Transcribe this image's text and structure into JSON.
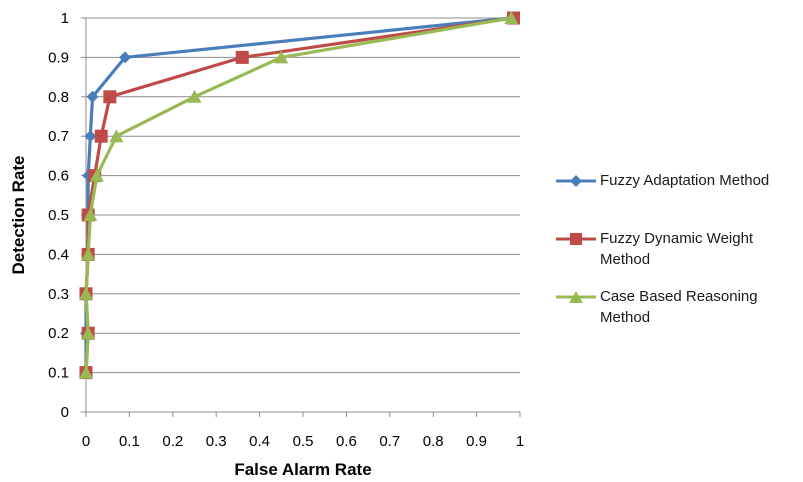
{
  "chart_data": {
    "type": "line",
    "xlabel": "False Alarm Rate",
    "ylabel": "Detection Rate",
    "xlim": [
      0,
      1
    ],
    "ylim": [
      0,
      1
    ],
    "xticks": [
      "0",
      "0.1",
      "0.2",
      "0.3",
      "0.4",
      "0.5",
      "0.6",
      "0.7",
      "0.8",
      "0.9",
      "1"
    ],
    "yticks": [
      "0",
      "0.1",
      "0.2",
      "0.3",
      "0.4",
      "0.5",
      "0.6",
      "0.7",
      "0.8",
      "0.9",
      "1"
    ],
    "grid": "horizontal",
    "legend_position": "right",
    "series": [
      {
        "name": "Fuzzy Adaptation Method",
        "color": "#4a7ebb",
        "marker": "diamond",
        "points": [
          [
            0.0,
            0.1
          ],
          [
            0.0,
            0.2
          ],
          [
            0.0,
            0.3
          ],
          [
            0.005,
            0.4
          ],
          [
            0.005,
            0.5
          ],
          [
            0.005,
            0.6
          ],
          [
            0.01,
            0.7
          ],
          [
            0.015,
            0.8
          ],
          [
            0.09,
            0.9
          ],
          [
            0.98,
            1.0
          ]
        ]
      },
      {
        "name": "Fuzzy Dynamic Weight Method",
        "color": "#be4b48",
        "marker": "square",
        "points": [
          [
            0.0,
            0.1
          ],
          [
            0.005,
            0.2
          ],
          [
            0.0,
            0.3
          ],
          [
            0.005,
            0.4
          ],
          [
            0.005,
            0.5
          ],
          [
            0.02,
            0.6
          ],
          [
            0.035,
            0.7
          ],
          [
            0.055,
            0.8
          ],
          [
            0.36,
            0.9
          ],
          [
            0.985,
            1.0
          ]
        ]
      },
      {
        "name": "Case Based Reasoning Method",
        "color": "#98b954",
        "marker": "triangle",
        "points": [
          [
            0.0,
            0.1
          ],
          [
            0.005,
            0.2
          ],
          [
            0.0,
            0.3
          ],
          [
            0.005,
            0.4
          ],
          [
            0.01,
            0.5
          ],
          [
            0.025,
            0.6
          ],
          [
            0.07,
            0.7
          ],
          [
            0.25,
            0.8
          ],
          [
            0.45,
            0.9
          ],
          [
            0.98,
            1.0
          ]
        ]
      }
    ]
  }
}
